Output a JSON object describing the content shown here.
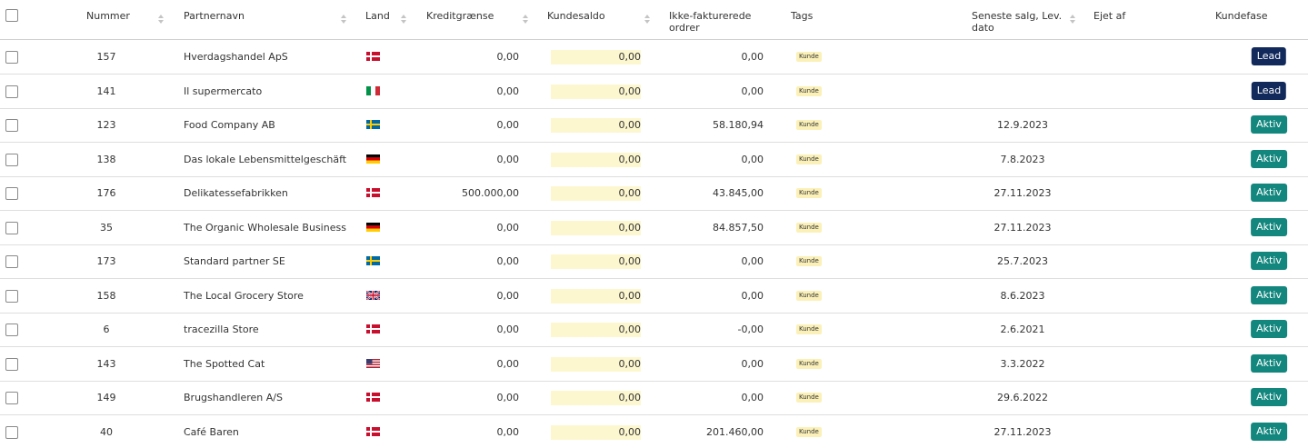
{
  "header": {
    "columns": [
      "Nummer",
      "Partnernavn",
      "Land",
      "Kreditgrænse",
      "Kundesaldo",
      "Ikke-fakturerede ordrer",
      "Tags",
      "Seneste salg, Lev. dato",
      "Ejet af",
      "Kundefase"
    ]
  },
  "table": {
    "rows": [
      {
        "number": 157,
        "name": "Hverdagshandel ApS",
        "credit": "0,00",
        "balance": "0,00",
        "uninvoiced": "0,00",
        "tag": "Kunde",
        "phase": "Lead"
      },
      {
        "number": 141,
        "name": "Il supermercato",
        "credit": "0,00",
        "balance": "0,00",
        "uninvoiced": "0,00",
        "tag": "Kunde",
        "phase": "Lead"
      },
      {
        "number": 123,
        "name": "Food Company AB",
        "credit": "0,00",
        "balance": "0,00",
        "uninvoiced": "58.180,94",
        "tag": "Kunde",
        "last_sale": "12.9.2023",
        "phase": "Aktiv"
      },
      {
        "number": 138,
        "name": "Das lokale Lebensmittelgeschäft",
        "credit": "0,00",
        "balance": "0,00",
        "uninvoiced": "0,00",
        "tag": "Kunde",
        "last_sale": "7.8.2023",
        "phase": "Aktiv"
      },
      {
        "number": 176,
        "name": "Delikatessefabrikken",
        "credit": "500.000,00",
        "balance": "0,00",
        "uninvoiced": "43.845,00",
        "tag": "Kunde",
        "last_sale": "27.11.2023",
        "phase": "Aktiv"
      },
      {
        "number": 35,
        "name": "The Organic Wholesale Business",
        "credit": "0,00",
        "balance": "0,00",
        "uninvoiced": "84.857,50",
        "tag": "Kunde",
        "last_sale": "27.11.2023",
        "phase": "Aktiv"
      },
      {
        "number": 173,
        "name": "Standard partner SE",
        "credit": "0,00",
        "balance": "0,00",
        "uninvoiced": "0,00",
        "tag": "Kunde",
        "last_sale": "25.7.2023",
        "phase": "Aktiv"
      },
      {
        "number": 158,
        "name": "The Local Grocery Store",
        "credit": "0,00",
        "balance": "0,00",
        "uninvoiced": "0,00",
        "tag": "Kunde",
        "last_sale": "8.6.2023",
        "phase": "Aktiv"
      },
      {
        "number": 6,
        "name": "tracezilla Store",
        "credit": "0,00",
        "balance": "0,00",
        "uninvoiced": "-0,00",
        "tag": "Kunde",
        "last_sale": "2.6.2021",
        "phase": "Aktiv"
      },
      {
        "number": 143,
        "name": "The Spotted Cat",
        "credit": "0,00",
        "balance": "0,00",
        "uninvoiced": "0,00",
        "tag": "Kunde",
        "last_sale": "3.3.2022",
        "phase": "Aktiv"
      },
      {
        "number": 149,
        "name": "Brugshandleren A/S",
        "credit": "0,00",
        "balance": "0,00",
        "uninvoiced": "0,00",
        "tag": "Kunde",
        "last_sale": "29.6.2022",
        "phase": "Aktiv"
      },
      {
        "number": 40,
        "name": "Café Baren",
        "credit": "0,00",
        "balance": "0,00",
        "uninvoiced": "201.460,00",
        "tag": "Kunde",
        "last_sale": "27.11.2023",
        "phase": "Aktiv"
      }
    ]
  }
}
